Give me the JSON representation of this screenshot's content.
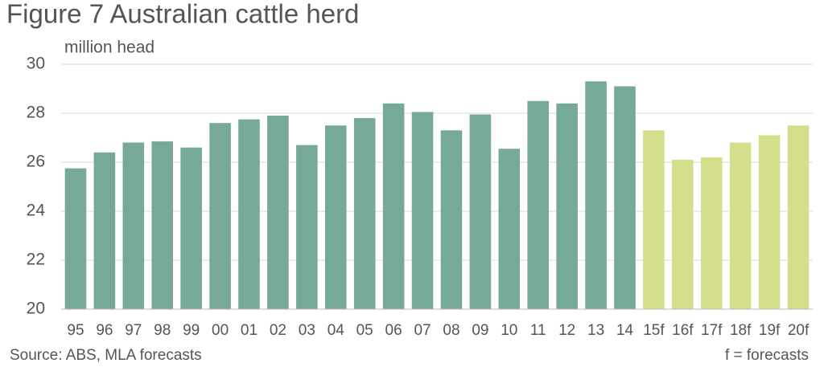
{
  "chart_data": {
    "type": "bar",
    "title": "Figure 7 Australian cattle herd",
    "y_label": "million head",
    "categories": [
      "95",
      "96",
      "97",
      "98",
      "99",
      "00",
      "01",
      "02",
      "03",
      "04",
      "05",
      "06",
      "07",
      "08",
      "09",
      "10",
      "11",
      "12",
      "13",
      "14",
      "15f",
      "16f",
      "17f",
      "18f",
      "19f",
      "20f"
    ],
    "values": [
      25.75,
      26.4,
      26.8,
      26.85,
      26.6,
      27.6,
      27.75,
      27.9,
      26.7,
      27.5,
      27.8,
      28.4,
      28.05,
      27.3,
      27.95,
      26.55,
      28.5,
      28.4,
      29.3,
      29.1,
      27.3,
      26.1,
      26.2,
      26.8,
      27.1,
      27.5
    ],
    "colors": [
      "#76a99a",
      "#76a99a",
      "#76a99a",
      "#76a99a",
      "#76a99a",
      "#76a99a",
      "#76a99a",
      "#76a99a",
      "#76a99a",
      "#76a99a",
      "#76a99a",
      "#76a99a",
      "#76a99a",
      "#76a99a",
      "#76a99a",
      "#76a99a",
      "#76a99a",
      "#76a99a",
      "#76a99a",
      "#76a99a",
      "#d5df8b",
      "#d5df8b",
      "#d5df8b",
      "#d5df8b",
      "#d5df8b",
      "#d5df8b"
    ],
    "ylim": [
      20,
      30
    ],
    "yticks": [
      20,
      22,
      24,
      26,
      28,
      30
    ],
    "grid": true,
    "source": "Source: ABS, MLA forecasts",
    "note": "f = forecasts"
  }
}
